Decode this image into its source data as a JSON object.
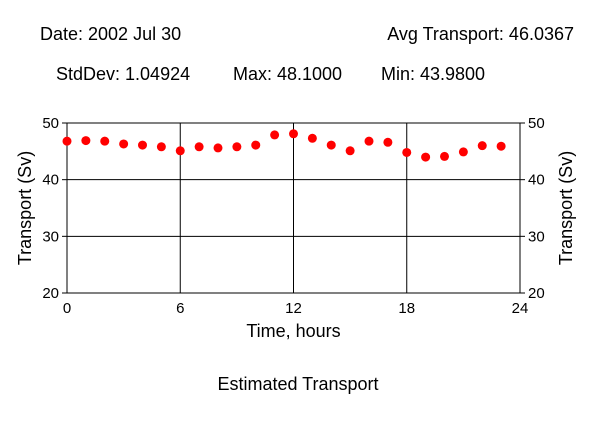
{
  "header": {
    "date": "Date: 2002 Jul 30",
    "avg": "Avg Transport: 46.0367",
    "stddev": "StdDev: 1.04924",
    "max": "Max: 48.1000",
    "min": "Min: 43.9800"
  },
  "caption": "Estimated Transport",
  "chart_data": {
    "type": "scatter",
    "xlabel": "Time, hours",
    "ylabel": "Transport (Sv)",
    "xlim": [
      0,
      24
    ],
    "ylim": [
      20,
      50
    ],
    "xticks": [
      0,
      6,
      12,
      18,
      24
    ],
    "yticks": [
      20,
      30,
      40,
      50
    ],
    "grid": true,
    "marker_color": "#ff0000",
    "x": [
      0,
      1,
      2,
      3,
      4,
      5,
      6,
      7,
      8,
      9,
      10,
      11,
      12,
      13,
      14,
      15,
      16,
      17,
      18,
      19,
      20,
      21,
      22,
      23
    ],
    "y": [
      46.8,
      46.9,
      46.8,
      46.3,
      46.1,
      45.8,
      45.1,
      45.8,
      45.6,
      45.8,
      46.1,
      47.9,
      48.1,
      47.3,
      46.1,
      45.1,
      46.8,
      46.6,
      44.8,
      43.98,
      44.1,
      44.9,
      46.0,
      45.9
    ]
  }
}
